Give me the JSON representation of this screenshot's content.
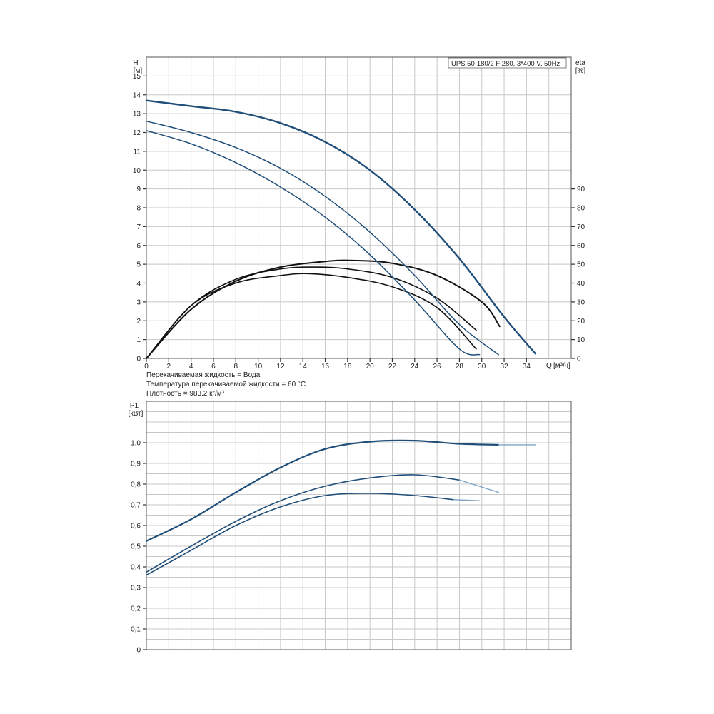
{
  "chart_data": [
    {
      "type": "line",
      "model_label": "UPS 50-180/2 F 280, 3*400 V, 50Hz",
      "y_axis": {
        "label": "H",
        "unit": "[м]",
        "range": [
          0,
          16
        ],
        "ticks": [
          "0",
          "1",
          "2",
          "3",
          "4",
          "5",
          "6",
          "7",
          "8",
          "9",
          "10",
          "11",
          "12",
          "13",
          "14",
          "15"
        ]
      },
      "y2_axis": {
        "label": "eta",
        "unit": "[%]",
        "range": [
          0,
          160
        ],
        "ticks": [
          "0",
          "10",
          "20",
          "30",
          "40",
          "50",
          "60",
          "70",
          "80",
          "90"
        ]
      },
      "x_axis": {
        "label": "Q",
        "unit": "[м³/ч]",
        "range": [
          0,
          38
        ],
        "ticks": [
          "0",
          "2",
          "4",
          "6",
          "8",
          "10",
          "12",
          "14",
          "16",
          "18",
          "20",
          "22",
          "24",
          "26",
          "28",
          "30",
          "32",
          "34"
        ]
      },
      "notes": [
        "Перекачиваемая жидкость = Вода",
        "Температура перекачиваемой жидкости = 60 °C",
        "Плотность = 983.2 кг/м³"
      ],
      "head_series": [
        {
          "x": [
            0,
            4,
            8,
            12,
            16,
            20,
            24,
            28,
            32,
            34.8
          ],
          "y": [
            13.7,
            13.4,
            13.1,
            12.5,
            11.5,
            10.0,
            7.9,
            5.3,
            2.2,
            0.25
          ],
          "color": "#1f4e79",
          "stroke_width": 2.4
        },
        {
          "x": [
            0,
            4,
            8,
            12,
            16,
            20,
            24,
            28,
            31.5
          ],
          "y": [
            12.6,
            12.0,
            11.2,
            10.1,
            8.6,
            6.7,
            4.4,
            1.8,
            0.2
          ],
          "color": "#1f4e79",
          "stroke_width": 1.5
        },
        {
          "x": [
            0,
            4,
            8,
            12,
            16,
            20,
            24,
            28,
            29.8
          ],
          "y": [
            12.1,
            11.4,
            10.4,
            9.1,
            7.5,
            5.5,
            3.1,
            0.5,
            0.2
          ],
          "color": "#1f4e79",
          "stroke_width": 1.5
        }
      ],
      "eta_series": [
        {
          "x": [
            0,
            4,
            8,
            12,
            16,
            18.5,
            22,
            26,
            30,
            31.6
          ],
          "y": [
            0,
            26,
            41,
            48.5,
            51.5,
            52,
            50.5,
            44,
            30,
            17
          ],
          "color": "#111111",
          "stroke_width": 2.0
        },
        {
          "x": [
            0,
            4,
            8,
            12,
            15,
            18,
            22,
            26,
            29.5
          ],
          "y": [
            0,
            28,
            42,
            47.5,
            48.5,
            47.5,
            43,
            32,
            15
          ],
          "color": "#111111",
          "stroke_width": 1.6
        },
        {
          "x": [
            0,
            4,
            8,
            12,
            14.5,
            18,
            22,
            26,
            29.5
          ],
          "y": [
            0,
            28,
            40,
            44,
            45,
            43,
            38,
            27,
            5
          ],
          "color": "#111111",
          "stroke_width": 1.6
        }
      ]
    },
    {
      "type": "line",
      "y_axis": {
        "label": "P1",
        "unit": "[кВт]",
        "range": [
          0,
          1.2
        ],
        "ticks": [
          "0",
          "0,1",
          "0,2",
          "0,3",
          "0,4",
          "0,5",
          "0,6",
          "0,7",
          "0,8",
          "0,9",
          "1,0"
        ]
      },
      "x_axis": {
        "range": [
          0,
          38
        ]
      },
      "power_series": [
        {
          "x": [
            0,
            4,
            8,
            12,
            16,
            20,
            24,
            28,
            31.5,
            34.8
          ],
          "y": [
            0.525,
            0.63,
            0.76,
            0.88,
            0.97,
            1.005,
            1.01,
            0.995,
            0.99,
            0.99
          ],
          "solid_until": 31.5,
          "color": "#1f4e79",
          "stroke_width": 2.2
        },
        {
          "x": [
            0,
            4,
            8,
            12,
            16,
            20,
            24,
            28,
            31.5
          ],
          "y": [
            0.375,
            0.5,
            0.62,
            0.72,
            0.79,
            0.83,
            0.845,
            0.82,
            0.76
          ],
          "solid_until": 27,
          "color": "#1f4e79",
          "stroke_width": 1.6
        },
        {
          "x": [
            0,
            4,
            8,
            12,
            16,
            20,
            24,
            27.5,
            29.8
          ],
          "y": [
            0.36,
            0.48,
            0.6,
            0.69,
            0.745,
            0.755,
            0.745,
            0.725,
            0.72
          ],
          "solid_until": 26,
          "color": "#1f4e79",
          "stroke_width": 1.6
        }
      ]
    }
  ]
}
